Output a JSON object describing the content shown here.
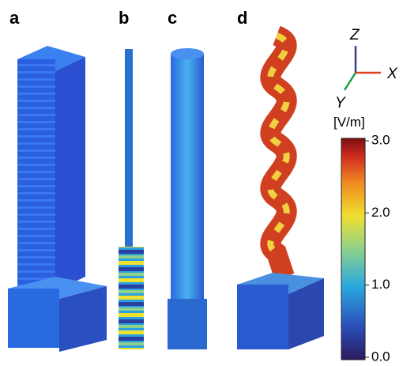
{
  "panels": [
    "a",
    "b",
    "c",
    "d"
  ],
  "axes": {
    "z": "Z",
    "x": "X",
    "y": "Y"
  },
  "colorbar": {
    "unit": "[V/m]",
    "lim": [
      0,
      3
    ],
    "ticks": [
      {
        "value": 3,
        "label": "3.0"
      },
      {
        "value": 2,
        "label": "2.0"
      },
      {
        "value": 1,
        "label": "1.0"
      },
      {
        "value": 0,
        "label": "0.0"
      }
    ]
  }
}
